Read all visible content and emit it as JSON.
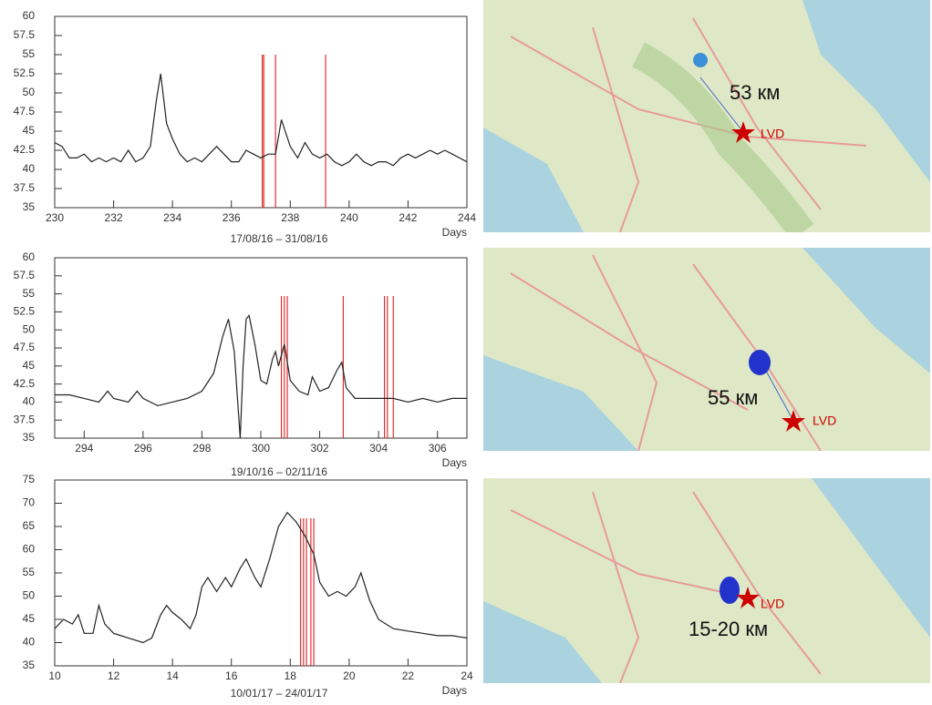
{
  "chart_data": [
    {
      "type": "line",
      "subtitle": "17/08/16 – 31/08/16",
      "x_label": "Days",
      "x": [
        230,
        230.25,
        230.5,
        230.75,
        231,
        231.25,
        231.5,
        231.75,
        232,
        232.25,
        232.5,
        232.75,
        233,
        233.25,
        233.45,
        233.6,
        233.8,
        234,
        234.25,
        234.5,
        234.75,
        235,
        235.25,
        235.5,
        235.75,
        236,
        236.25,
        236.5,
        236.75,
        237,
        237.25,
        237.5,
        237.7,
        238,
        238.25,
        238.5,
        238.75,
        239,
        239.25,
        239.5,
        239.75,
        240,
        240.25,
        240.5,
        240.75,
        241,
        241.25,
        241.5,
        241.75,
        242,
        242.25,
        242.5,
        242.75,
        243,
        243.25,
        243.5,
        243.75,
        244
      ],
      "values": [
        43.5,
        43,
        41.5,
        41.5,
        42,
        41,
        41.5,
        41,
        41.5,
        41,
        42.5,
        41,
        41.5,
        43,
        49,
        52.5,
        46,
        44,
        42,
        41,
        41.5,
        41,
        42,
        43,
        42,
        41,
        41,
        42.5,
        42,
        41.5,
        42,
        42,
        46.5,
        43,
        41.5,
        43.5,
        42,
        41.5,
        42,
        41,
        40.5,
        41,
        42,
        41,
        40.5,
        41,
        41,
        40.5,
        41.5,
        42,
        41.5,
        42,
        42.5,
        42,
        42.5,
        42,
        41.5,
        41
      ],
      "color": "#222222",
      "events": [
        237.05,
        237.1,
        237.5,
        239.2
      ],
      "event_color": "#e03030",
      "xlim": [
        230,
        244
      ],
      "xticks": [
        230,
        232,
        234,
        236,
        238,
        240,
        242,
        244
      ],
      "ylim": [
        35,
        60
      ],
      "yticks": [
        35,
        37.5,
        40,
        42.5,
        45,
        47.5,
        50,
        52.5,
        55,
        57.5,
        60
      ]
    },
    {
      "type": "line",
      "subtitle": "19/10/16 – 02/11/16",
      "x_label": "Days",
      "x": [
        293,
        293.5,
        294,
        294.5,
        294.8,
        295,
        295.5,
        295.8,
        296,
        296.5,
        297,
        297.5,
        298,
        298.4,
        298.7,
        298.9,
        299.1,
        299.3,
        299.4,
        299.5,
        299.6,
        299.8,
        300,
        300.2,
        300.4,
        300.5,
        300.6,
        300.8,
        301,
        301.3,
        301.6,
        301.75,
        302,
        302.3,
        302.6,
        302.75,
        302.9,
        303.2,
        303.5,
        304,
        304.5,
        305,
        305.5,
        306,
        306.5,
        307
      ],
      "values": [
        41,
        41,
        40.5,
        40,
        41.5,
        40.5,
        40,
        41.5,
        40.5,
        39.5,
        40,
        40.5,
        41.5,
        44,
        49,
        51.5,
        47,
        35,
        45,
        51.5,
        52,
        48,
        43,
        42.5,
        46,
        47,
        45,
        48,
        43,
        41.5,
        41,
        43.5,
        41.5,
        42,
        44.5,
        45.5,
        42,
        40.5,
        40.5,
        40.5,
        40.5,
        40,
        40.5,
        40,
        40.5,
        40.5
      ],
      "color": "#222222",
      "events": [
        300.7,
        300.8,
        300.9,
        302.8,
        304.2,
        304.3,
        304.5
      ],
      "event_color": "#e03030",
      "xlim": [
        293,
        307
      ],
      "xticks": [
        294,
        296,
        298,
        300,
        302,
        304,
        306
      ],
      "ylim": [
        35,
        60
      ],
      "yticks": [
        35,
        37.5,
        40,
        42.5,
        45,
        47.5,
        50,
        52.5,
        55,
        57.5,
        60
      ]
    },
    {
      "type": "line",
      "subtitle": "10/01/17 – 24/01/17",
      "x_label": "Days",
      "x": [
        10,
        10.3,
        10.6,
        10.8,
        11,
        11.3,
        11.5,
        11.7,
        12,
        12.5,
        13,
        13.3,
        13.6,
        13.8,
        14,
        14.3,
        14.6,
        14.8,
        15,
        15.2,
        15.5,
        15.8,
        16,
        16.3,
        16.5,
        16.8,
        17,
        17.3,
        17.6,
        17.9,
        18.2,
        18.5,
        18.8,
        19,
        19.3,
        19.6,
        19.9,
        20.2,
        20.4,
        20.7,
        21,
        21.5,
        22,
        22.5,
        23,
        23.5,
        24
      ],
      "values": [
        43,
        45,
        44,
        46,
        42,
        42,
        48,
        44,
        42,
        41,
        40,
        41,
        46,
        48,
        46.5,
        45,
        43,
        46,
        52,
        54,
        51,
        54,
        52,
        56,
        58,
        54,
        52,
        58,
        65,
        68,
        66,
        63,
        59,
        53,
        50,
        51,
        50,
        52,
        55,
        49,
        45,
        43,
        42.5,
        42,
        41.5,
        41.5,
        41
      ],
      "color": "#222222",
      "events": [
        18.35,
        18.45,
        18.55,
        18.7,
        18.8
      ],
      "event_color": "#e03030",
      "xlim": [
        10,
        24
      ],
      "xticks": [
        10,
        12,
        14,
        16,
        18,
        20,
        22,
        24
      ],
      "ylim": [
        35,
        75
      ],
      "yticks": [
        35,
        40,
        45,
        50,
        55,
        60,
        65,
        70,
        75
      ]
    }
  ],
  "maps": [
    {
      "distance": "53 км",
      "station": "LVD"
    },
    {
      "distance": "55 км",
      "station": "LVD"
    },
    {
      "distance": "15-20 км",
      "station": "LVD"
    }
  ]
}
